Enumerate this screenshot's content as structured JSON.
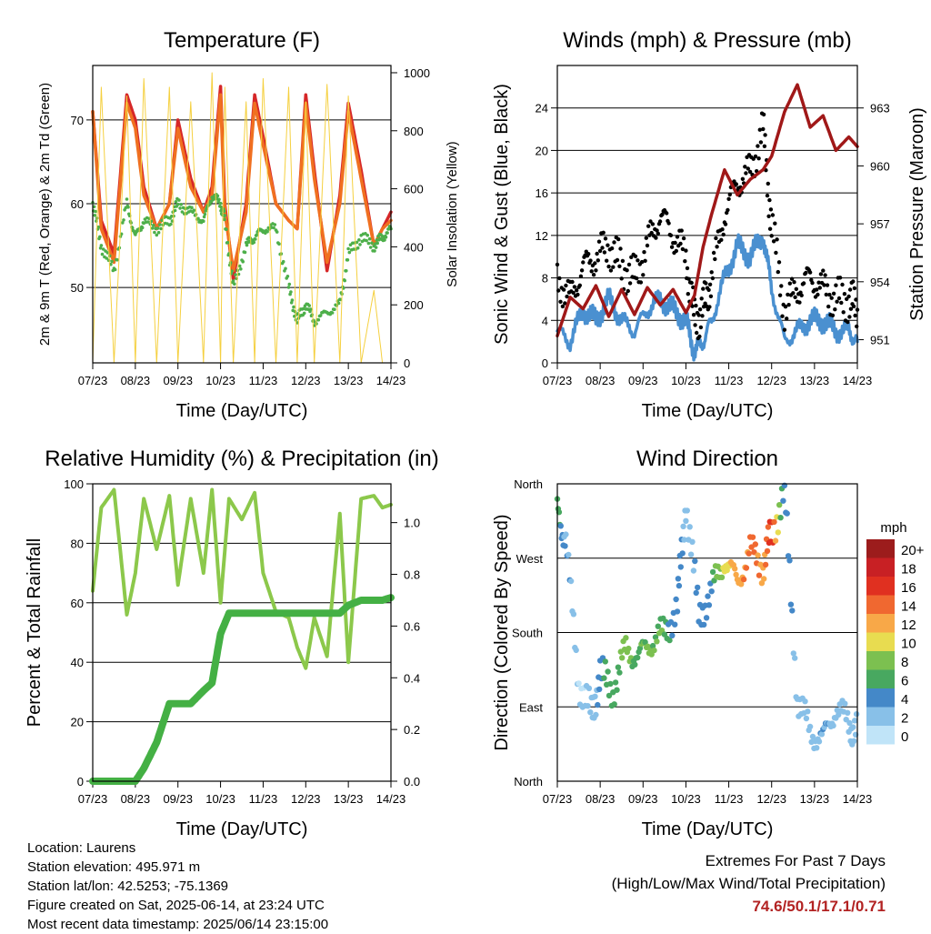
{
  "chart_data": [
    {
      "type": "line",
      "title": "Temperature (F)",
      "xlabel": "Time (Day/UTC)",
      "ylabel": "2m & 9m T (Red, Orange) & 2m Td (Green)",
      "y2label": "Solar Insolation (Yellow)",
      "xticks": [
        "07/23",
        "08/23",
        "09/23",
        "10/23",
        "11/23",
        "12/23",
        "13/23",
        "14/23"
      ],
      "ylim": [
        41,
        76.5
      ],
      "yticks": [
        50,
        60,
        70
      ],
      "y2lim": [
        0,
        1025
      ],
      "y2ticks": [
        0,
        200,
        400,
        600,
        800,
        1000
      ],
      "x_days": [
        0,
        0.2,
        0.5,
        0.8,
        1.0,
        1.2,
        1.5,
        1.8,
        2.0,
        2.3,
        2.6,
        2.8,
        3.0,
        3.1,
        3.3,
        3.6,
        3.8,
        4.0,
        4.3,
        4.6,
        4.8,
        5.0,
        5.2,
        5.5,
        5.8,
        6.0,
        6.3,
        6.6,
        6.8,
        7.0
      ],
      "series": [
        {
          "name": "2m T",
          "color": "#d62728",
          "values": [
            71,
            58,
            54,
            73,
            70,
            62,
            57,
            60,
            70,
            63,
            59,
            62,
            74,
            60,
            51,
            60,
            73,
            68,
            60,
            58,
            57,
            73,
            64,
            52,
            61,
            72,
            64,
            55,
            57,
            59
          ]
        },
        {
          "name": "9m T",
          "color": "#f07020",
          "values": [
            71,
            57,
            53,
            72,
            69,
            61,
            57,
            60,
            69,
            62,
            59,
            61,
            73,
            59,
            52,
            59,
            72,
            67,
            60,
            58,
            57,
            72,
            63,
            53,
            60,
            71,
            63,
            55,
            57,
            58
          ]
        },
        {
          "name": "2m Td",
          "color": "#4daf4a",
          "values": [
            60,
            55,
            52,
            60,
            56,
            58,
            57,
            58,
            60,
            59,
            58,
            61,
            60,
            58,
            50,
            55,
            56,
            57,
            57,
            50,
            46,
            48,
            46,
            47,
            48,
            54,
            56,
            55,
            56,
            57
          ]
        },
        {
          "name": "Solar Insolation",
          "color": "#f5d040",
          "axis": "y2",
          "values": [
            0,
            950,
            0,
            920,
            0,
            980,
            0,
            950,
            0,
            900,
            0,
            1000,
            0,
            950,
            0,
            900,
            0,
            980,
            0,
            950,
            0,
            900,
            0,
            960,
            0,
            920,
            0,
            250,
            0,
            0
          ]
        }
      ]
    },
    {
      "type": "line",
      "title": "Winds (mph) & Pressure (mb)",
      "xlabel": "Time (Day/UTC)",
      "ylabel": "Sonic Wind & Gust (Blue, Black)",
      "y2label": "Station Pressure (Maroon)",
      "xticks": [
        "07/23",
        "08/23",
        "09/23",
        "10/23",
        "11/23",
        "12/23",
        "13/23",
        "14/23"
      ],
      "ylim": [
        0,
        28
      ],
      "yticks": [
        0,
        4,
        8,
        12,
        16,
        20,
        24
      ],
      "y2lim": [
        949.8,
        965.2
      ],
      "y2ticks": [
        951,
        954,
        957,
        960,
        963
      ],
      "x_days": [
        0,
        0.3,
        0.6,
        0.9,
        1.2,
        1.5,
        1.8,
        2.1,
        2.4,
        2.7,
        3.0,
        3.2,
        3.4,
        3.6,
        3.9,
        4.2,
        4.5,
        4.8,
        5.0,
        5.3,
        5.6,
        5.9,
        6.2,
        6.5,
        6.8,
        7.0
      ],
      "series": [
        {
          "name": "Sonic Wind",
          "color": "#4a90d0",
          "values": [
            3,
            2,
            5,
            4,
            6,
            4,
            3,
            5,
            6,
            5,
            4,
            1,
            2,
            4,
            8,
            11,
            10,
            12,
            7,
            2,
            3,
            4,
            4,
            3,
            3,
            2
          ]
        },
        {
          "name": "Gust",
          "color": "#000000",
          "values": [
            8,
            6,
            9,
            10,
            11,
            9,
            8,
            11,
            14,
            12,
            10,
            4,
            5,
            8,
            14,
            17,
            18,
            22,
            13,
            5,
            7,
            8,
            7,
            6,
            6,
            5
          ]
        },
        {
          "name": "Station Pressure",
          "color": "#a01818",
          "axis": "y2",
          "values": [
            951.2,
            953.2,
            952.6,
            953.8,
            952.2,
            953.6,
            952.3,
            953.7,
            952.8,
            953.6,
            952.4,
            953.3,
            955.8,
            957.5,
            959.8,
            958.5,
            959.3,
            959.8,
            960.5,
            962.8,
            964.2,
            962.0,
            962.6,
            960.8,
            961.5,
            961.0
          ]
        }
      ]
    },
    {
      "type": "line",
      "title": "Relative Humidity (%) & Precipitation (in)",
      "xlabel": "Time (Day/UTC)",
      "ylabel": "Percent & Total Rainfall",
      "xticks": [
        "07/23",
        "08/23",
        "09/23",
        "10/23",
        "11/23",
        "12/23",
        "13/23",
        "14/23"
      ],
      "ylim": [
        0,
        100
      ],
      "yticks": [
        0,
        20,
        40,
        60,
        80,
        100
      ],
      "y2lim": [
        0,
        1.15
      ],
      "y2ticks": [
        "0.0",
        "0.2",
        "0.4",
        "0.6",
        "0.8",
        "1.0"
      ],
      "x_days": [
        0,
        0.2,
        0.5,
        0.8,
        1.0,
        1.2,
        1.5,
        1.8,
        2.0,
        2.3,
        2.6,
        2.8,
        3.0,
        3.2,
        3.5,
        3.8,
        4.0,
        4.3,
        4.6,
        4.8,
        5.0,
        5.2,
        5.5,
        5.8,
        6.0,
        6.3,
        6.6,
        6.8,
        7.0
      ],
      "series": [
        {
          "name": "Relative Humidity",
          "color": "#8cc84b",
          "values": [
            64,
            92,
            98,
            56,
            70,
            95,
            78,
            96,
            66,
            95,
            70,
            98,
            60,
            95,
            88,
            97,
            70,
            57,
            55,
            45,
            38,
            55,
            42,
            90,
            40,
            95,
            96,
            92,
            93
          ]
        },
        {
          "name": "Total Rainfall",
          "color": "#44b044",
          "axis": "y2",
          "values": [
            0,
            0,
            0,
            0,
            0,
            0.05,
            0.15,
            0.3,
            0.3,
            0.3,
            0.35,
            0.38,
            0.57,
            0.65,
            0.65,
            0.65,
            0.65,
            0.65,
            0.65,
            0.65,
            0.65,
            0.65,
            0.65,
            0.65,
            0.68,
            0.7,
            0.7,
            0.7,
            0.71
          ]
        }
      ]
    },
    {
      "type": "scatter",
      "title": "Wind Direction",
      "xlabel": "Time (Day/UTC)",
      "ylabel": "Direction (Colored By Speed)",
      "xticks": [
        "07/23",
        "08/23",
        "09/23",
        "10/23",
        "11/23",
        "12/23",
        "13/23",
        "14/23"
      ],
      "ylim": [
        0,
        360
      ],
      "yticks": [
        "North",
        "East",
        "South",
        "West",
        "North"
      ],
      "legend_title": "mph",
      "legend_labels": [
        "20+",
        "18",
        "16",
        "14",
        "12",
        "10",
        "8",
        "6",
        "4",
        "2",
        "0"
      ],
      "legend_colors": [
        "#9c1c1c",
        "#c82024",
        "#e03020",
        "#f06830",
        "#f8a848",
        "#e8dc50",
        "#7cc050",
        "#48a860",
        "#4488c8",
        "#88c0e8",
        "#c0e4f8"
      ],
      "x_days": [
        0,
        0.2,
        0.5,
        0.8,
        1.0,
        1.3,
        1.6,
        1.9,
        2.2,
        2.5,
        2.8,
        3.0,
        3.3,
        3.6,
        3.9,
        4.2,
        4.5,
        4.8,
        5.0,
        5.3,
        5.6,
        5.9,
        6.2,
        6.5,
        6.8,
        7.0
      ],
      "directions": [
        330,
        290,
        120,
        80,
        130,
        110,
        160,
        150,
        170,
        180,
        210,
        340,
        200,
        230,
        270,
        240,
        280,
        260,
        300,
        350,
        100,
        60,
        50,
        90,
        70,
        60
      ],
      "speeds": [
        6,
        3,
        1,
        2,
        4,
        6,
        8,
        6,
        8,
        6,
        4,
        2,
        3,
        5,
        10,
        12,
        14,
        12,
        16,
        3,
        3,
        2,
        3,
        2,
        2,
        2
      ]
    }
  ],
  "footer": {
    "location": "Location: Laurens",
    "elevation": "Station elevation: 495.971 m",
    "latlon": "Station lat/lon: 42.5253; -75.1369",
    "created": "Figure created on Sat, 2025-06-14, at 23:24 UTC",
    "recent": "Most recent data timestamp: 2025/06/14 23:15:00"
  },
  "extremes": {
    "title": "Extremes For Past 7 Days",
    "subtitle": "(High/Low/Max Wind/Total Precipitation)",
    "values": "74.6/50.1/17.1/0.71"
  }
}
